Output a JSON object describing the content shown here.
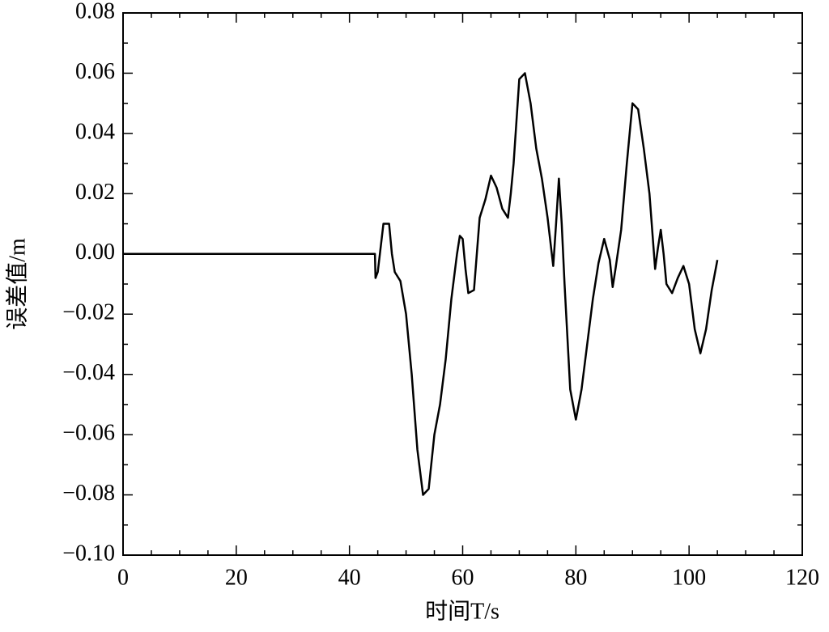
{
  "chart_data": {
    "type": "line",
    "xlabel": "时间T/s",
    "ylabel": "误差值/m",
    "xlim": [
      0,
      120
    ],
    "ylim": [
      -0.1,
      0.08
    ],
    "xticks": [
      0,
      20,
      40,
      60,
      80,
      100,
      120
    ],
    "yticks": [
      0.08,
      0.06,
      0.04,
      0.02,
      {
        "value": 0,
        "label": "0.00"
      },
      {
        "value": -0.02,
        "label": "−0.02"
      },
      {
        "value": -0.04,
        "label": "−0.04"
      },
      {
        "value": -0.06,
        "label": "−0.06"
      },
      {
        "value": -0.08,
        "label": "−0.08"
      },
      {
        "value": -0.1,
        "label": "−0.10"
      }
    ],
    "x_minor_ticks": [
      5,
      10,
      15,
      25,
      30,
      35,
      45,
      50,
      55,
      65,
      70,
      75,
      85,
      90,
      95,
      105,
      110,
      115
    ],
    "y_minor_ticks": [
      0.07,
      0.05,
      0.03,
      0.01,
      -0.01,
      -0.03,
      -0.05,
      -0.07,
      -0.09
    ],
    "series": [
      {
        "color": "#000000",
        "x": [
          0,
          44.5,
          44.6,
          45,
          46,
          47,
          47.5,
          48,
          49,
          50,
          51,
          52,
          53,
          54,
          55,
          56,
          57,
          58,
          59,
          59.5,
          60,
          60.5,
          61,
          62,
          62.5,
          63,
          64,
          65,
          66,
          67,
          68,
          68.5,
          69,
          70,
          71,
          72,
          73,
          74,
          75,
          76,
          76.5,
          77,
          77.5,
          78,
          79,
          80,
          81,
          82,
          83,
          84,
          85,
          86,
          86.5,
          87,
          88,
          89,
          90,
          91,
          92,
          93,
          94,
          94.5,
          95,
          95.5,
          96,
          97,
          98,
          99,
          100,
          101,
          102,
          103,
          104,
          105
        ],
        "values": [
          0,
          0,
          -0.008,
          -0.006,
          0.01,
          0.01,
          0,
          -0.006,
          -0.009,
          -0.02,
          -0.04,
          -0.065,
          -0.08,
          -0.078,
          -0.06,
          -0.05,
          -0.035,
          -0.015,
          0,
          0.006,
          0.005,
          -0.005,
          -0.013,
          -0.012,
          0,
          0.012,
          0.018,
          0.026,
          0.022,
          0.015,
          0.012,
          0.02,
          0.03,
          0.058,
          0.06,
          0.05,
          0.035,
          0.025,
          0.012,
          -0.004,
          0.01,
          0.025,
          0.01,
          -0.01,
          -0.045,
          -0.055,
          -0.045,
          -0.03,
          -0.015,
          -0.003,
          0.005,
          -0.002,
          -0.011,
          -0.005,
          0.008,
          0.03,
          0.05,
          0.048,
          0.035,
          0.02,
          -0.005,
          0.002,
          0.008,
          0,
          -0.01,
          -0.013,
          -0.008,
          -0.004,
          -0.01,
          -0.025,
          -0.033,
          -0.025,
          -0.012,
          -0.002
        ]
      }
    ]
  }
}
